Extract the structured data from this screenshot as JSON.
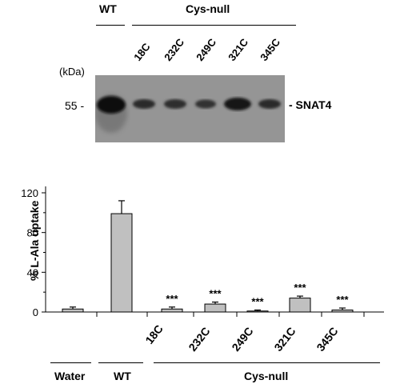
{
  "blot": {
    "group_wt": "WT",
    "group_cys": "Cys-null",
    "lanes": [
      "18C",
      "232C",
      "249C",
      "321C",
      "345C"
    ],
    "kda_label": "(kDa)",
    "mw_marker": "55 -",
    "band_label": "- SNAT4"
  },
  "chart_data": {
    "type": "bar",
    "categories": [
      "Water",
      "WT",
      "18C",
      "232C",
      "249C",
      "321C",
      "345C"
    ],
    "values": [
      3,
      99,
      3,
      8,
      1,
      14,
      2
    ],
    "errors": [
      2,
      13,
      2,
      2,
      1,
      2,
      2
    ],
    "significance": [
      "",
      "",
      "***",
      "***",
      "***",
      "***",
      "***"
    ],
    "ylabel": "% L-Ala uptake",
    "ylim": [
      0,
      120
    ],
    "yticks": [
      0,
      40,
      80,
      120
    ],
    "group_labels": [
      "Water",
      "WT",
      "Cys-null"
    ],
    "bar_color": "#c0c0c0"
  }
}
